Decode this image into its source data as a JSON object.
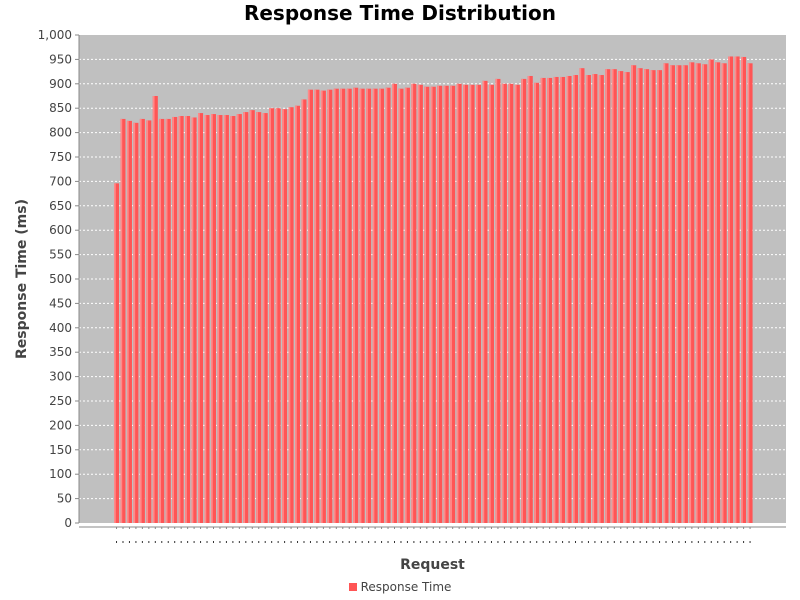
{
  "chart_data": {
    "type": "bar",
    "title": "Response Time Distribution",
    "xlabel": "Request",
    "ylabel": "Response Time (ms)",
    "ylim": [
      0,
      1000
    ],
    "yticks": [
      "0",
      "50",
      "100",
      "150",
      "200",
      "250",
      "300",
      "350",
      "400",
      "450",
      "500",
      "550",
      "600",
      "650",
      "700",
      "750",
      "800",
      "850",
      "900",
      "950",
      "1,000"
    ],
    "grid": true,
    "legend_position": "bottom",
    "series": [
      {
        "name": "Response Time",
        "color": "#ff5555",
        "values": [
          696,
          828,
          824,
          820,
          828,
          825,
          875,
          828,
          828,
          832,
          834,
          834,
          831,
          840,
          836,
          838,
          836,
          836,
          834,
          838,
          842,
          846,
          842,
          840,
          850,
          850,
          848,
          852,
          855,
          868,
          888,
          888,
          886,
          888,
          890,
          890,
          890,
          892,
          890,
          890,
          890,
          890,
          892,
          900,
          890,
          892,
          900,
          898,
          894,
          894,
          896,
          896,
          896,
          900,
          898,
          898,
          898,
          906,
          898,
          910,
          900,
          900,
          898,
          910,
          916,
          902,
          912,
          912,
          914,
          914,
          916,
          918,
          932,
          918,
          920,
          918,
          930,
          930,
          926,
          924,
          938,
          932,
          930,
          928,
          928,
          942,
          938,
          938,
          938,
          944,
          942,
          940,
          950,
          944,
          942,
          956,
          956,
          955,
          942
        ]
      }
    ]
  },
  "legend": {
    "label": "Response Time"
  }
}
